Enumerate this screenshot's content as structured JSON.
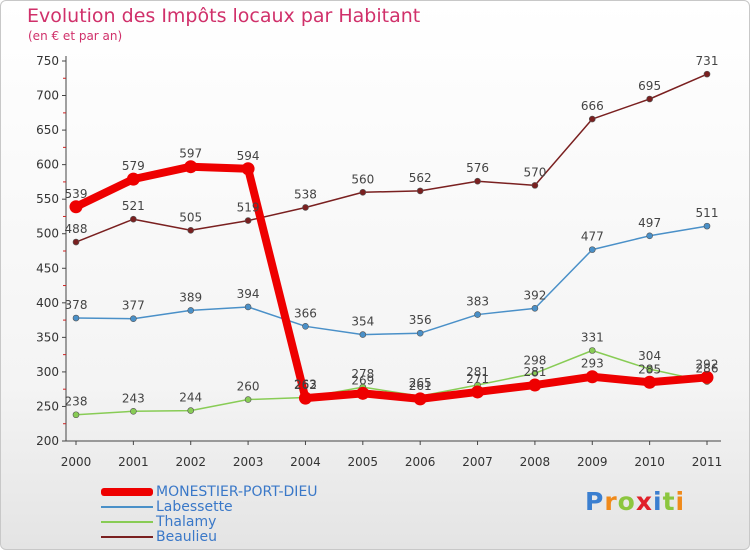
{
  "chart_data": {
    "type": "line",
    "title": "Evolution des Impôts locaux par Habitant",
    "subtitle": "(en € et par an)",
    "xlabel": "",
    "ylabel": "",
    "categories": [
      "2000",
      "2001",
      "2002",
      "2003",
      "2004",
      "2005",
      "2006",
      "2007",
      "2008",
      "2009",
      "2010",
      "2011"
    ],
    "ylim": [
      200,
      750
    ],
    "yticks": [
      200,
      250,
      300,
      350,
      400,
      450,
      500,
      550,
      600,
      650,
      700,
      750
    ],
    "grid": false,
    "legend_position": "bottom-left",
    "series": [
      {
        "name": "MONESTIER-PORT-DIEU",
        "color": "#ee0000",
        "values": [
          539,
          579,
          597,
          594,
          262,
          269,
          261,
          271,
          281,
          293,
          285,
          292
        ]
      },
      {
        "name": "Labessette",
        "color": "#4a90c8",
        "values": [
          378,
          377,
          389,
          394,
          366,
          354,
          356,
          383,
          392,
          477,
          497,
          511
        ]
      },
      {
        "name": "Thalamy",
        "color": "#88cc55",
        "values": [
          238,
          243,
          244,
          260,
          263,
          278,
          265,
          281,
          298,
          331,
          304,
          286
        ]
      },
      {
        "name": "Beaulieu",
        "color": "#7a2020",
        "values": [
          488,
          521,
          505,
          519,
          538,
          560,
          562,
          576,
          570,
          666,
          695,
          731
        ]
      }
    ]
  },
  "brand": {
    "letters": [
      "P",
      "r",
      "o",
      "x",
      "i",
      "t",
      "i"
    ]
  }
}
